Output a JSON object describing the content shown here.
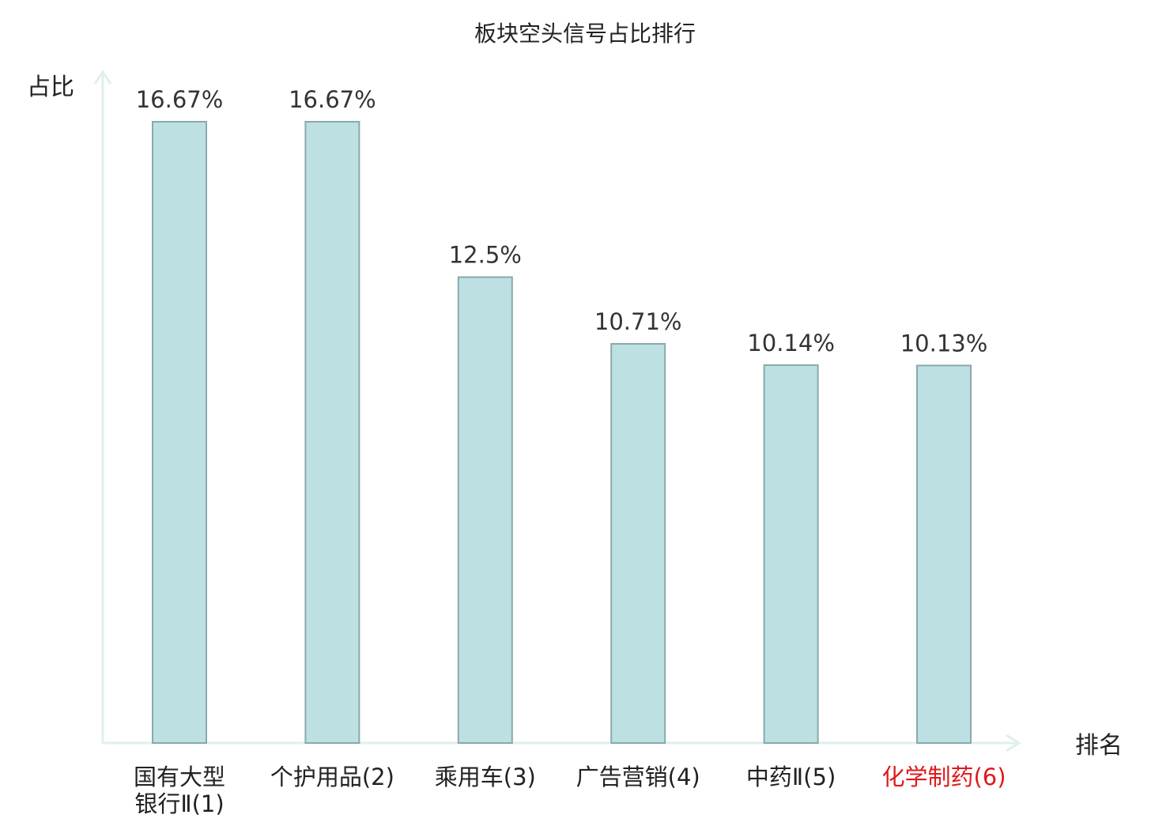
{
  "chart_data": {
    "type": "bar",
    "title": "板块空头信号占比排行",
    "ylabel": "占比",
    "xlabel": "排名",
    "ylim": [
      0,
      20
    ],
    "grid": false,
    "categories": [
      {
        "lines": [
          "国有大型",
          "银行Ⅱ(1)"
        ],
        "highlight": false
      },
      {
        "lines": [
          "个护用品(2)"
        ],
        "highlight": false
      },
      {
        "lines": [
          "乘用车(3)"
        ],
        "highlight": false
      },
      {
        "lines": [
          "广告营销(4)"
        ],
        "highlight": false
      },
      {
        "lines": [
          "中药Ⅱ(5)"
        ],
        "highlight": false
      },
      {
        "lines": [
          "化学制药(6)"
        ],
        "highlight": true
      }
    ],
    "values": [
      16.67,
      16.67,
      12.5,
      10.71,
      10.14,
      10.13
    ],
    "value_labels": [
      "16.67%",
      "16.67%",
      "12.5%",
      "10.71%",
      "10.14%",
      "10.13%"
    ],
    "colors": {
      "bar_fill": "#bde1e3",
      "bar_stroke": "#8aa9ab",
      "axis": "#dff0ee",
      "highlight_text": "#e0191b"
    }
  }
}
